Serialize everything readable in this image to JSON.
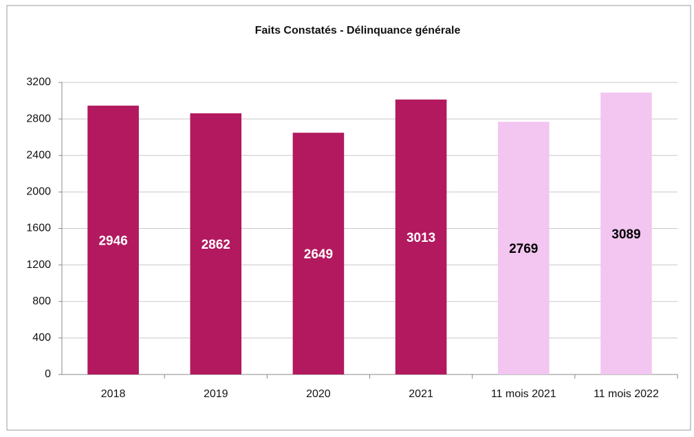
{
  "chart_data": {
    "type": "bar",
    "title": "Faits Constatés - Délinquance générale",
    "categories": [
      "2018",
      "2019",
      "2020",
      "2021",
      "11 mois 2021",
      "11 mois 2022"
    ],
    "values": [
      2946,
      2862,
      2649,
      3013,
      2769,
      3089
    ],
    "colors": [
      "#b2195e",
      "#b2195e",
      "#b2195e",
      "#b2195e",
      "#f2c6f0",
      "#f2c6f0"
    ],
    "label_colors": [
      "#ffffff",
      "#ffffff",
      "#ffffff",
      "#ffffff",
      "#000000",
      "#000000"
    ],
    "ylim": [
      0,
      3200
    ],
    "yticks": [
      0,
      400,
      800,
      1200,
      1600,
      2000,
      2400,
      2800,
      3200
    ],
    "grid": true
  }
}
